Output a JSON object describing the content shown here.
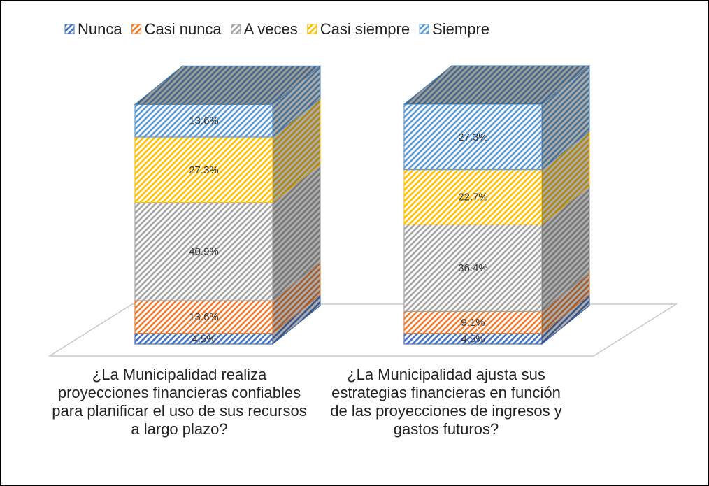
{
  "chart_data": {
    "type": "bar3d_stacked",
    "categories": [
      "¿La Municipalidad realiza proyecciones financieras confiables para planificar el uso de sus recursos a largo plazo?",
      "¿La Municipalidad ajusta sus estrategias financieras en función de las proyecciones de ingresos y gastos futuros?"
    ],
    "series": [
      {
        "name": "Nunca",
        "color": "#4472c4",
        "values": [
          4.5,
          4.5
        ],
        "value_labels": [
          "4.5%",
          "4.5%"
        ]
      },
      {
        "name": "Casi nunca",
        "color": "#ed7d31",
        "values": [
          13.6,
          9.1
        ],
        "value_labels": [
          "13.6%",
          "9.1%"
        ]
      },
      {
        "name": "A veces",
        "color": "#a5a5a5",
        "values": [
          40.9,
          36.4
        ],
        "value_labels": [
          "40.9%",
          "36.4%"
        ]
      },
      {
        "name": "Casi siempre",
        "color": "#ffc000",
        "values": [
          27.3,
          22.7
        ],
        "value_labels": [
          "27.3%",
          "22.7%"
        ]
      },
      {
        "name": "Siempre",
        "color": "#5b9bd5",
        "values": [
          13.6,
          27.3
        ],
        "value_labels": [
          "13.6%",
          "27.3%"
        ]
      }
    ],
    "legend": "top"
  }
}
